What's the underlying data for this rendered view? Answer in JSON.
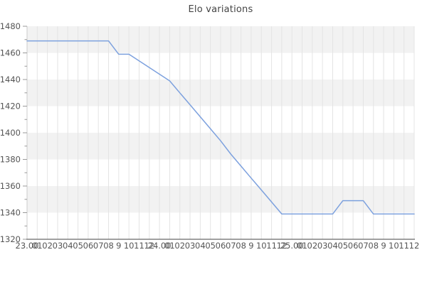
{
  "chart": {
    "title": "Elo variations"
  },
  "chart_data": {
    "type": "line",
    "title": "Elo variations",
    "xlabel": "",
    "ylabel": "",
    "x_labels": [
      "23.00",
      "01",
      "02",
      "03",
      "04",
      "05",
      "06",
      "07",
      "08",
      "9",
      "10",
      "11",
      "12",
      "24.00",
      "01",
      "02",
      "03",
      "04",
      "05",
      "06",
      "07",
      "08",
      "9",
      "10",
      "11",
      "12",
      "25.00",
      "01",
      "02",
      "03",
      "04",
      "05",
      "06",
      "07",
      "08",
      "9",
      "10",
      "11",
      "12"
    ],
    "values": [
      1469,
      1469,
      1469,
      1469,
      1469,
      1469,
      1469,
      1469,
      1469,
      1459,
      1459,
      1454,
      1449,
      1444,
      1439,
      1430,
      1421,
      1412,
      1403,
      1394,
      1384,
      1375,
      1366,
      1357,
      1348,
      1339,
      1339,
      1339,
      1339,
      1339,
      1339,
      1349,
      1349,
      1349,
      1339,
      1339,
      1339,
      1339,
      1339
    ],
    "ylim": [
      1320,
      1480
    ],
    "y_tick_labels": [
      "1480",
      "1460",
      "1440",
      "1420",
      "1400",
      "1380",
      "1360",
      "1340",
      "1320"
    ],
    "y_tick_step": 20,
    "y_minor_tick_step": 10,
    "grid": "on",
    "band_fill": "alternating horizontal bands every 20 units, shaded from 1480 downward",
    "legend_position": "none",
    "colors": {
      "line": "#7da1de",
      "band": "#f2f2f2",
      "gridline": "#e4e4e4",
      "x_axis_line": "#808080",
      "y_axis_line": "#cccccc",
      "tick": "#999999",
      "label_text": "#555555",
      "title_text": "#444444",
      "background": "#ffffff"
    }
  }
}
